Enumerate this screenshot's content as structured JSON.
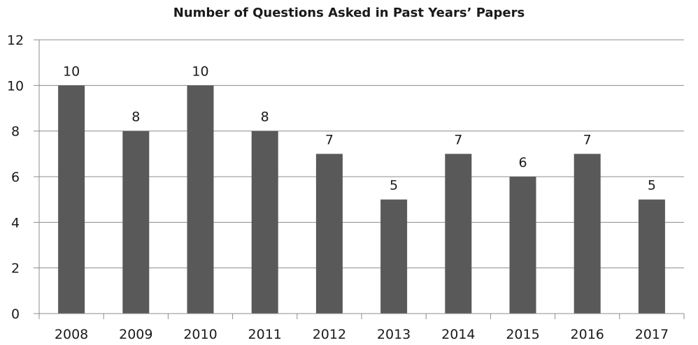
{
  "chart_data": {
    "type": "bar",
    "title": "Number of Questions Asked in Past Years’ Papers",
    "categories": [
      "2008",
      "2009",
      "2010",
      "2011",
      "2012",
      "2013",
      "2014",
      "2015",
      "2016",
      "2017"
    ],
    "values": [
      10,
      8,
      10,
      8,
      7,
      5,
      7,
      6,
      7,
      5
    ],
    "data_labels": [
      "10",
      "8",
      "10",
      "8",
      "7",
      "5",
      "7",
      "6",
      "7",
      "5"
    ],
    "y_ticks": [
      "0",
      "2",
      "4",
      "6",
      "8",
      "10",
      "12"
    ],
    "ylim": [
      0,
      12
    ],
    "grid": true,
    "colors": {
      "bar": "#595959",
      "grid": "#8c8c8c",
      "axis": "#8c8c8c"
    }
  }
}
